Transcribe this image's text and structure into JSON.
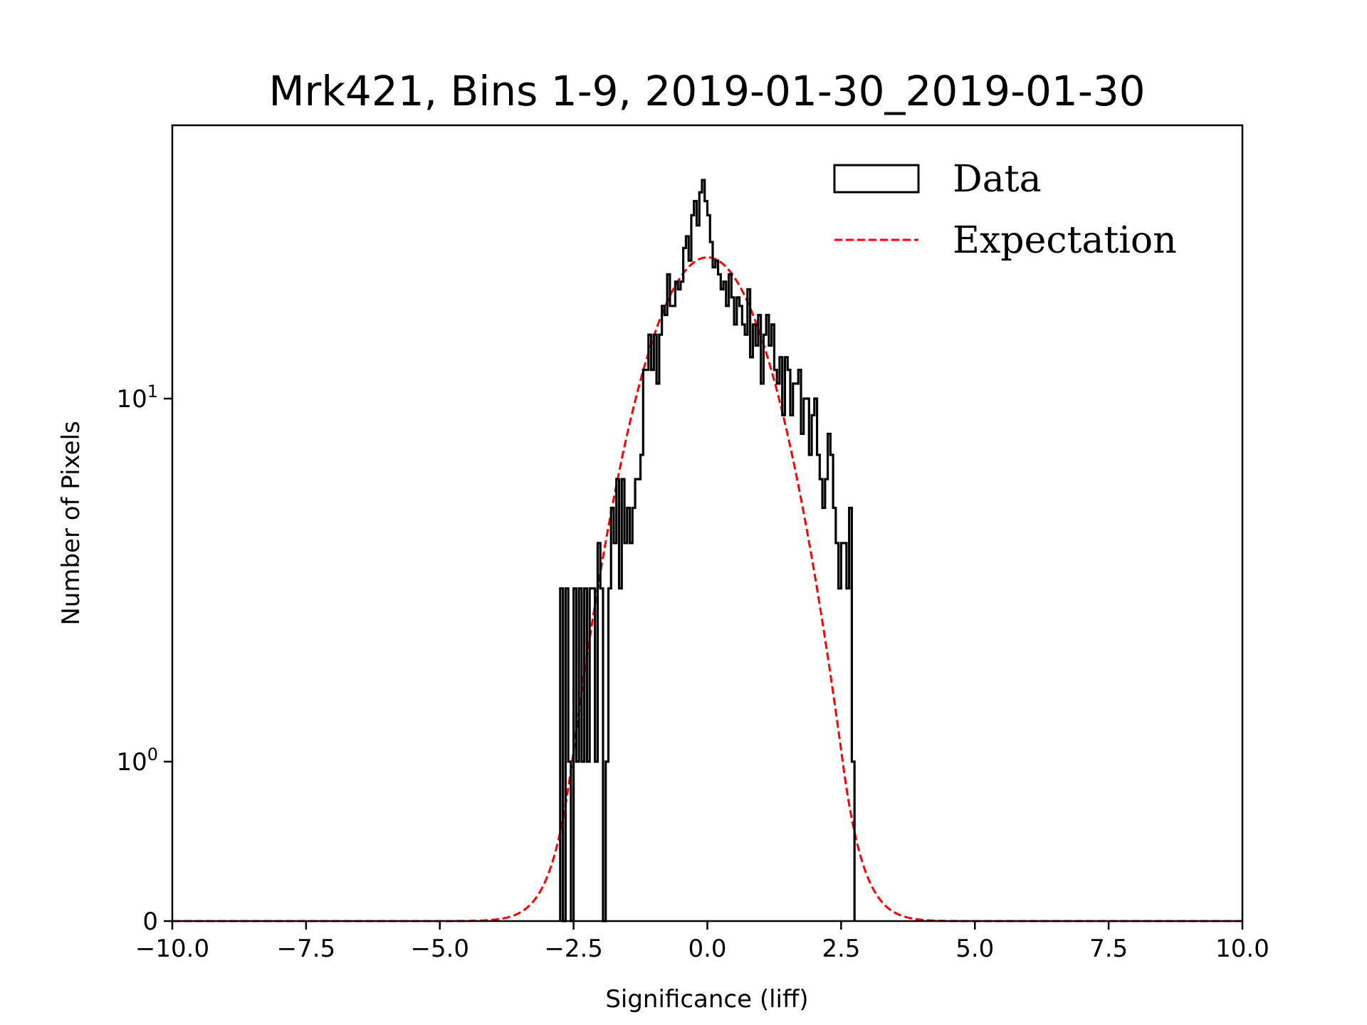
{
  "chart_data": {
    "type": "line",
    "title": "Mrk421, Bins 1-9, 2019-01-30_2019-01-30",
    "xlabel": "Significance (liff)",
    "ylabel": "Number of Pixels",
    "xlim": [
      -10,
      10
    ],
    "yscale": "symlog",
    "ylim": [
      0,
      57
    ],
    "x_ticks": [
      -10,
      -7.5,
      -5,
      -2.5,
      0,
      2.5,
      5,
      7.5,
      10
    ],
    "x_tick_labels": [
      "−10.0",
      "−7.5",
      "−5.0",
      "−2.5",
      "0.0",
      "2.5",
      "5.0",
      "7.5",
      "10.0"
    ],
    "y_ticks": [
      0,
      1,
      10
    ],
    "y_tick_labels": [
      {
        "base": "0",
        "exp": ""
      },
      {
        "base": "10",
        "exp": "0"
      },
      {
        "base": "10",
        "exp": "1"
      }
    ],
    "grid": false,
    "legend": {
      "position": "top-right",
      "entries": [
        {
          "label": "Data",
          "style": "step-histogram",
          "color": "#000000"
        },
        {
          "label": "Expectation",
          "style": "dashed-line",
          "color": "#ff0000"
        }
      ]
    },
    "series": [
      {
        "name": "Data",
        "kind": "histogram-step",
        "color": "#000000",
        "bin_width": 0.05,
        "bin_start": -2.75,
        "counts": [
          3,
          0,
          3,
          1,
          0,
          3,
          1,
          3,
          1,
          3,
          1,
          3,
          3,
          1,
          4,
          3,
          0,
          1,
          3,
          5,
          4,
          6,
          3,
          6,
          4,
          5,
          4,
          5,
          6,
          6,
          7,
          12,
          12,
          15,
          12,
          15,
          11,
          15,
          18,
          17,
          22,
          18,
          18,
          21,
          20,
          21,
          26,
          28,
          24,
          32,
          35,
          30,
          37,
          40,
          35,
          32,
          27,
          23,
          24,
          22,
          20,
          21,
          18,
          22,
          19,
          16,
          19,
          18,
          16,
          15,
          20,
          13,
          16,
          14,
          17,
          11,
          15,
          17,
          14,
          16,
          12,
          11,
          13,
          9,
          13,
          12,
          9,
          11,
          11,
          12,
          8,
          10,
          10,
          7,
          9,
          10,
          7,
          6,
          5,
          6,
          8,
          7,
          5,
          4,
          3,
          4,
          4,
          3,
          5,
          1
        ],
        "x_range": [
          -2.75,
          2.7
        ]
      },
      {
        "name": "Expectation",
        "kind": "gaussian",
        "color": "#ff0000",
        "amplitude": 24.5,
        "mean": 0.0,
        "sigma": 1.0,
        "x_range": [
          -10,
          10
        ]
      }
    ]
  }
}
